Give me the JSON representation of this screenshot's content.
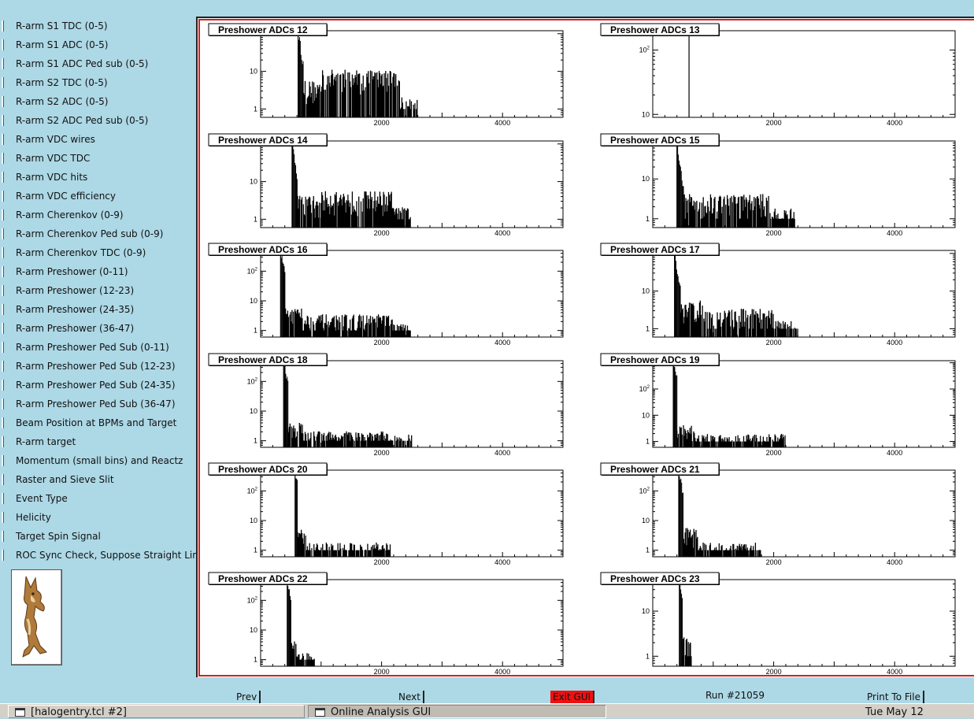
{
  "menu": {
    "items": [
      "R-arm S1 TDC (0-5)",
      "R-arm S1 ADC (0-5)",
      "R-arm S1 ADC Ped sub (0-5)",
      "R-arm S2 TDC (0-5)",
      "R-arm S2 ADC (0-5)",
      "R-arm S2 ADC Ped sub (0-5)",
      "R-arm VDC wires",
      "R-arm VDC TDC",
      "R-arm VDC hits",
      "R-arm VDC efficiency",
      "R-arm Cherenkov (0-9)",
      "R-arm Cherenkov Ped sub (0-9)",
      "R-arm Cherenkov TDC (0-9)",
      "R-arm Preshower (0-11)",
      "R-arm Preshower (12-23)",
      "R-arm Preshower (24-35)",
      "R-arm Preshower (36-47)",
      "R-arm Preshower Ped Sub (0-11)",
      "R-arm Preshower Ped Sub (12-23)",
      "R-arm Preshower Ped Sub (24-35)",
      "R-arm Preshower Ped Sub (36-47)",
      "Beam Position at BPMs and Target",
      "R-arm target",
      "Momentum (small bins) and Reactz",
      "Raster and Sieve Slit",
      "Event Type",
      "Helicity",
      "Target Spin Signal",
      "ROC Sync Check, Suppose Straight Lines"
    ]
  },
  "logo": {
    "icon": "coyote-logo-icon"
  },
  "buttons": {
    "prev": "Prev",
    "next": "Next",
    "exit": "Exit GUI",
    "print": "Print To File"
  },
  "run_label": "Run #21059",
  "taskbar": {
    "tasks": [
      "[halogentry.tcl #2]",
      "Online Analysis GUI"
    ],
    "clock": "Tue May 12"
  },
  "colors": {
    "background": "#add8e6",
    "frame": "#cc2222",
    "exit": "#ee1111"
  },
  "chart_data": [
    {
      "type": "bar",
      "title": "Preshower ADCs 12",
      "xlim": [
        0,
        5000
      ],
      "xticks": [
        2000,
        4000
      ],
      "yscale": "log",
      "yticks": [
        {
          "v": 1,
          "t": "1"
        },
        {
          "v": 10,
          "t": "10"
        },
        {
          "v": 100,
          "t": "10^2"
        }
      ],
      "ylim": [
        0.6,
        120
      ],
      "peak": 620,
      "peak_y": 120,
      "bumps": [
        {
          "x0": 700,
          "x1": 1000,
          "y": 4
        },
        {
          "x0": 1000,
          "x1": 2300,
          "y": 8
        },
        {
          "x0": 2300,
          "x1": 2600,
          "y": 1.5
        }
      ]
    },
    {
      "type": "bar",
      "title": "Preshower ADCs 13",
      "xlim": [
        0,
        5000
      ],
      "xticks": [
        2000,
        4000
      ],
      "yscale": "log",
      "yticks": [
        {
          "v": 10,
          "t": "10"
        },
        {
          "v": 100,
          "t": "10^2"
        }
      ],
      "ylim": [
        9,
        200
      ],
      "peak": 600,
      "peak_y": 180,
      "bumps": []
    },
    {
      "type": "bar",
      "title": "Preshower ADCs 14",
      "xlim": [
        0,
        5000
      ],
      "xticks": [
        2000,
        4000
      ],
      "yscale": "log",
      "yticks": [
        {
          "v": 1,
          "t": "1"
        },
        {
          "v": 10,
          "t": "10"
        },
        {
          "v": 100,
          "t": "10^2"
        }
      ],
      "ylim": [
        0.6,
        120
      ],
      "peak": 520,
      "peak_y": 120,
      "bumps": [
        {
          "x0": 600,
          "x1": 1000,
          "y": 3
        },
        {
          "x0": 1000,
          "x1": 2200,
          "y": 4
        },
        {
          "x0": 2200,
          "x1": 2500,
          "y": 1.5
        }
      ]
    },
    {
      "type": "bar",
      "title": "Preshower ADCs 15",
      "xlim": [
        0,
        5000
      ],
      "xticks": [
        2000,
        4000
      ],
      "yscale": "log",
      "yticks": [
        {
          "v": 1,
          "t": "1"
        },
        {
          "v": 10,
          "t": "10"
        }
      ],
      "ylim": [
        0.6,
        90
      ],
      "peak": 400,
      "peak_y": 80,
      "bumps": [
        {
          "x0": 500,
          "x1": 800,
          "y": 3
        },
        {
          "x0": 800,
          "x1": 1950,
          "y": 3
        },
        {
          "x0": 1950,
          "x1": 2350,
          "y": 1.3
        }
      ]
    },
    {
      "type": "bar",
      "title": "Preshower ADCs 16",
      "xlim": [
        0,
        5000
      ],
      "xticks": [
        2000,
        4000
      ],
      "yscale": "log",
      "yticks": [
        {
          "v": 1,
          "t": "1"
        },
        {
          "v": 10,
          "t": "10"
        },
        {
          "v": 100,
          "t": "10^2"
        }
      ],
      "ylim": [
        0.6,
        500
      ],
      "peak": 330,
      "peak_y": 480,
      "bumps": [
        {
          "x0": 400,
          "x1": 700,
          "y": 5
        },
        {
          "x0": 700,
          "x1": 2200,
          "y": 2.5
        },
        {
          "x0": 2200,
          "x1": 2500,
          "y": 1.2
        }
      ]
    },
    {
      "type": "bar",
      "title": "Preshower ADCs 17",
      "xlim": [
        0,
        5000
      ],
      "xticks": [
        2000,
        4000
      ],
      "yscale": "log",
      "yticks": [
        {
          "v": 1,
          "t": "1"
        },
        {
          "v": 10,
          "t": "10"
        },
        {
          "v": 100,
          "t": "10^2"
        }
      ],
      "ylim": [
        0.6,
        120
      ],
      "peak": 360,
      "peak_y": 120,
      "bumps": [
        {
          "x0": 450,
          "x1": 900,
          "y": 4
        },
        {
          "x0": 900,
          "x1": 2000,
          "y": 2.5
        },
        {
          "x0": 2000,
          "x1": 2400,
          "y": 1.2
        }
      ]
    },
    {
      "type": "bar",
      "title": "Preshower ADCs 18",
      "xlim": [
        0,
        5000
      ],
      "xticks": [
        2000,
        4000
      ],
      "yscale": "log",
      "yticks": [
        {
          "v": 1,
          "t": "1"
        },
        {
          "v": 10,
          "t": "10"
        },
        {
          "v": 100,
          "t": "10^2"
        }
      ],
      "ylim": [
        0.6,
        500
      ],
      "peak": 380,
      "peak_y": 480,
      "bumps": [
        {
          "x0": 450,
          "x1": 700,
          "y": 3
        },
        {
          "x0": 700,
          "x1": 2100,
          "y": 1.5
        },
        {
          "x0": 2100,
          "x1": 2500,
          "y": 1.2
        }
      ]
    },
    {
      "type": "bar",
      "title": "Preshower ADCs 19",
      "xlim": [
        0,
        5000
      ],
      "xticks": [
        2000,
        4000
      ],
      "yscale": "log",
      "yticks": [
        {
          "v": 1,
          "t": "1"
        },
        {
          "v": 10,
          "t": "10"
        },
        {
          "v": 100,
          "t": "10^2"
        },
        {
          "v": 1000,
          "t": "10^3"
        }
      ],
      "ylim": [
        0.6,
        1200
      ],
      "peak": 340,
      "peak_y": 1100,
      "bumps": [
        {
          "x0": 400,
          "x1": 700,
          "y": 3
        },
        {
          "x0": 700,
          "x1": 2200,
          "y": 1.4
        }
      ]
    },
    {
      "type": "bar",
      "title": "Preshower ADCs 20",
      "xlim": [
        0,
        5000
      ],
      "xticks": [
        2000,
        4000
      ],
      "yscale": "log",
      "yticks": [
        {
          "v": 1,
          "t": "1"
        },
        {
          "v": 10,
          "t": "10"
        },
        {
          "v": 100,
          "t": "10^2"
        }
      ],
      "ylim": [
        0.6,
        500
      ],
      "peak": 570,
      "peak_y": 480,
      "bumps": [
        {
          "x0": 600,
          "x1": 750,
          "y": 4
        },
        {
          "x0": 750,
          "x1": 2150,
          "y": 1.3
        }
      ]
    },
    {
      "type": "bar",
      "title": "Preshower ADCs 21",
      "xlim": [
        0,
        5000
      ],
      "xticks": [
        2000,
        4000
      ],
      "yscale": "log",
      "yticks": [
        {
          "v": 1,
          "t": "1"
        },
        {
          "v": 10,
          "t": "10"
        },
        {
          "v": 100,
          "t": "10^2"
        }
      ],
      "ylim": [
        0.6,
        500
      ],
      "peak": 430,
      "peak_y": 480,
      "bumps": [
        {
          "x0": 500,
          "x1": 750,
          "y": 4
        },
        {
          "x0": 750,
          "x1": 1800,
          "y": 1.3
        }
      ]
    },
    {
      "type": "bar",
      "title": "Preshower ADCs 22",
      "xlim": [
        0,
        5000
      ],
      "xticks": [
        2000,
        4000
      ],
      "yscale": "log",
      "yticks": [
        {
          "v": 1,
          "t": "1"
        },
        {
          "v": 10,
          "t": "10"
        },
        {
          "v": 100,
          "t": "10^2"
        }
      ],
      "ylim": [
        0.6,
        500
      ],
      "peak": 440,
      "peak_y": 480,
      "bumps": [
        {
          "x0": 500,
          "x1": 600,
          "y": 3
        },
        {
          "x0": 600,
          "x1": 900,
          "y": 1.3
        }
      ]
    },
    {
      "type": "bar",
      "title": "Preshower ADCs 23",
      "xlim": [
        0,
        5000
      ],
      "xticks": [
        2000,
        4000
      ],
      "yscale": "log",
      "yticks": [
        {
          "v": 1,
          "t": "1"
        },
        {
          "v": 10,
          "t": "10"
        }
      ],
      "ylim": [
        0.6,
        50
      ],
      "peak": 440,
      "peak_y": 48,
      "bumps": [
        {
          "x0": 480,
          "x1": 640,
          "y": 2
        }
      ]
    }
  ]
}
